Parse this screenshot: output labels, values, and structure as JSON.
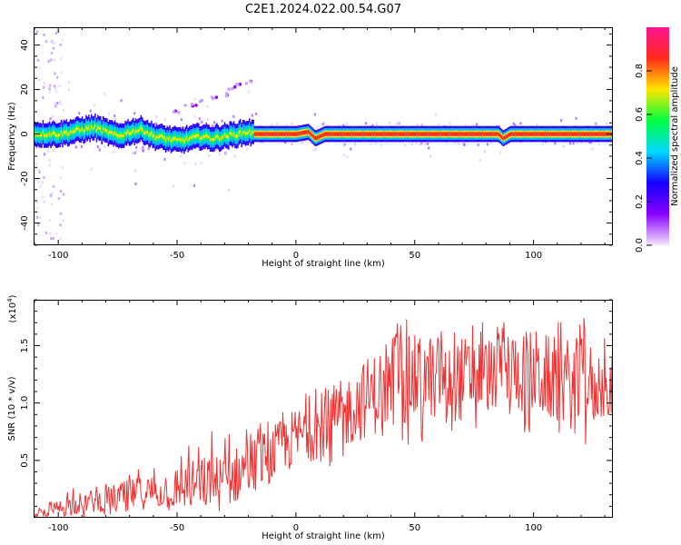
{
  "title": "C2E1.2024.022.00.54.G07",
  "chart_data": [
    {
      "type": "heatmap",
      "xlabel": "Height of straight line (km)",
      "ylabel": "Frequency (Hz)",
      "xlim": [
        -110,
        133
      ],
      "ylim": [
        -50,
        48
      ],
      "xticks": [
        -100,
        -50,
        0,
        50,
        100
      ],
      "yticks": [
        -40,
        -20,
        0,
        20,
        40
      ],
      "colorbar": {
        "label": "Normalized spectral amplitude",
        "range": [
          0,
          1
        ],
        "ticks": [
          "0.0",
          "0.2",
          "0.4",
          "0.6",
          "0.8"
        ],
        "colors": [
          "#f4e6ff",
          "#8a00ff",
          "#1400ff",
          "#00d8ff",
          "#00ff40",
          "#ffe600",
          "#ff2a1a",
          "#ff1493"
        ]
      },
      "centerline": [
        {
          "x": -110,
          "y": 0
        },
        {
          "x": -100,
          "y": 0
        },
        {
          "x": -90,
          "y": 2
        },
        {
          "x": -85,
          "y": 3
        },
        {
          "x": -80,
          "y": 1
        },
        {
          "x": -75,
          "y": -1
        },
        {
          "x": -70,
          "y": 1
        },
        {
          "x": -65,
          "y": 2
        },
        {
          "x": -60,
          "y": -1
        },
        {
          "x": -55,
          "y": -2
        },
        {
          "x": -50,
          "y": -3
        },
        {
          "x": -45,
          "y": -2
        },
        {
          "x": -40,
          "y": -1
        },
        {
          "x": -35,
          "y": -2
        },
        {
          "x": -30,
          "y": -1
        },
        {
          "x": -25,
          "y": 0
        },
        {
          "x": -20,
          "y": 1
        },
        {
          "x": -18,
          "y": 0
        },
        {
          "x": 0,
          "y": 0
        },
        {
          "x": 5,
          "y": 1
        },
        {
          "x": 8,
          "y": -2
        },
        {
          "x": 12,
          "y": 0
        },
        {
          "x": 85,
          "y": 0
        },
        {
          "x": 87,
          "y": -2
        },
        {
          "x": 90,
          "y": 0
        },
        {
          "x": 133,
          "y": 0
        }
      ],
      "branch": [
        {
          "x": -50,
          "y": 10
        },
        {
          "x": -45,
          "y": 12
        },
        {
          "x": -40,
          "y": 14
        },
        {
          "x": -35,
          "y": 16
        },
        {
          "x": -30,
          "y": 18
        },
        {
          "x": -27,
          "y": 20
        },
        {
          "x": -23,
          "y": 22
        },
        {
          "x": -20,
          "y": 24
        }
      ]
    },
    {
      "type": "line",
      "xlabel": "Height of straight line (km)",
      "ylabel": "SNR (10 * v/v)",
      "yscale_label": "(x10",
      "yscale_exp": "4",
      "yscale_close": ")",
      "xlim": [
        -110,
        133
      ],
      "ylim": [
        0,
        19000
      ],
      "xticks": [
        -100,
        -50,
        0,
        50,
        100
      ],
      "yticks": [
        {
          "value": 5000,
          "label": "0.5"
        },
        {
          "value": 10000,
          "label": "1.0"
        },
        {
          "value": 15000,
          "label": "1.5"
        }
      ],
      "color": "#f03232",
      "envelope": [
        {
          "x": -110,
          "lo": 0,
          "mean": 200,
          "hi": 500
        },
        {
          "x": -100,
          "lo": 0,
          "mean": 800,
          "hi": 2200
        },
        {
          "x": -90,
          "lo": 0,
          "mean": 1300,
          "hi": 2800
        },
        {
          "x": -80,
          "lo": 200,
          "mean": 1600,
          "hi": 3300
        },
        {
          "x": -70,
          "lo": 300,
          "mean": 2000,
          "hi": 4200
        },
        {
          "x": -60,
          "lo": 500,
          "mean": 2300,
          "hi": 5000
        },
        {
          "x": -50,
          "lo": 600,
          "mean": 2600,
          "hi": 6000
        },
        {
          "x": -40,
          "lo": 800,
          "mean": 3000,
          "hi": 7500
        },
        {
          "x": -30,
          "lo": 700,
          "mean": 3000,
          "hi": 8000
        },
        {
          "x": -20,
          "lo": 1000,
          "mean": 4500,
          "hi": 8000
        },
        {
          "x": -10,
          "lo": 2000,
          "mean": 5500,
          "hi": 9000
        },
        {
          "x": 0,
          "lo": 3000,
          "mean": 7000,
          "hi": 10500
        },
        {
          "x": 10,
          "lo": 3500,
          "mean": 8000,
          "hi": 11500
        },
        {
          "x": 20,
          "lo": 4000,
          "mean": 9000,
          "hi": 13000
        },
        {
          "x": 30,
          "lo": 5000,
          "mean": 10500,
          "hi": 15000
        },
        {
          "x": 40,
          "lo": 6000,
          "mean": 11500,
          "hi": 17000
        },
        {
          "x": 50,
          "lo": 6000,
          "mean": 12000,
          "hi": 17500
        },
        {
          "x": 60,
          "lo": 7000,
          "mean": 12500,
          "hi": 17000
        },
        {
          "x": 70,
          "lo": 7000,
          "mean": 12000,
          "hi": 18000
        },
        {
          "x": 80,
          "lo": 8000,
          "mean": 12500,
          "hi": 17500
        },
        {
          "x": 90,
          "lo": 8000,
          "mean": 13000,
          "hi": 17500
        },
        {
          "x": 100,
          "lo": 7000,
          "mean": 12500,
          "hi": 18500
        },
        {
          "x": 110,
          "lo": 7000,
          "mean": 12000,
          "hi": 17500
        },
        {
          "x": 120,
          "lo": 6000,
          "mean": 11500,
          "hi": 18000
        },
        {
          "x": 133,
          "lo": 8000,
          "mean": 11500,
          "hi": 15000
        }
      ],
      "samples": 700
    }
  ]
}
